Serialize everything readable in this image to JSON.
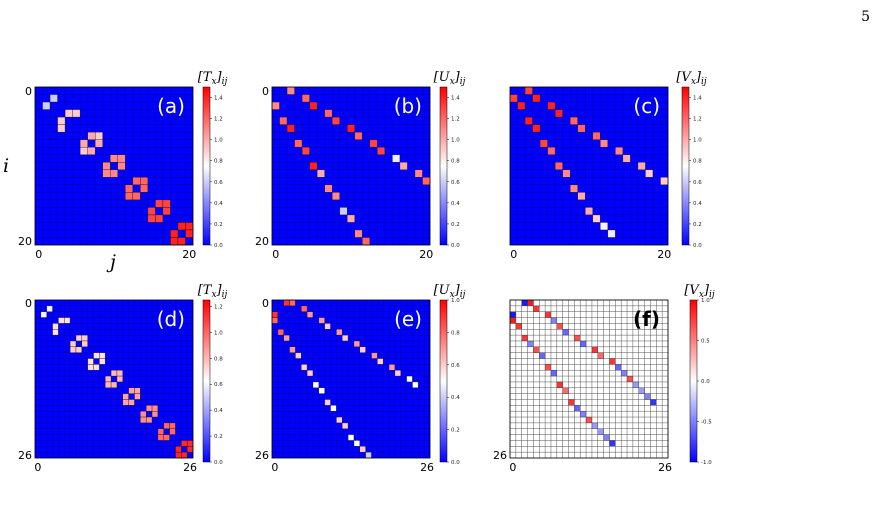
{
  "page_number": "5",
  "axis_labels": {
    "row": "i",
    "col": "j"
  },
  "colors": {
    "blue": "#0000ff",
    "white": "#ffffff",
    "red": "#ff0000",
    "grid": "#000000"
  },
  "chart_data": [
    {
      "type": "heatmap",
      "panel": "(a)",
      "cbar_title": "[T_x]_ij",
      "n": 21,
      "x_tick_labels": [
        "0",
        "20"
      ],
      "y_tick_labels": [
        "0",
        "20"
      ],
      "cbar_range": [
        0,
        1.5
      ],
      "cbar_ticks": [
        "1.4",
        "1.2",
        "1.0",
        "0.8",
        "0.6",
        "0.4",
        "0.2",
        "0.0"
      ],
      "nonzero": [
        [
          1,
          2,
          0.6
        ],
        [
          2,
          1,
          0.6
        ],
        [
          3,
          4,
          0.9
        ],
        [
          3,
          5,
          0.9
        ],
        [
          4,
          3,
          0.9
        ],
        [
          5,
          3,
          0.9
        ],
        [
          6,
          7,
          1.0
        ],
        [
          6,
          8,
          0.9
        ],
        [
          7,
          6,
          1.0
        ],
        [
          7,
          8,
          1.0
        ],
        [
          8,
          6,
          0.9
        ],
        [
          8,
          7,
          1.0
        ],
        [
          9,
          10,
          1.1
        ],
        [
          9,
          11,
          1.1
        ],
        [
          10,
          9,
          1.1
        ],
        [
          10,
          11,
          1.1
        ],
        [
          11,
          9,
          1.1
        ],
        [
          11,
          10,
          1.1
        ],
        [
          12,
          13,
          1.2
        ],
        [
          12,
          14,
          1.2
        ],
        [
          13,
          12,
          1.2
        ],
        [
          13,
          14,
          1.2
        ],
        [
          14,
          12,
          1.2
        ],
        [
          14,
          13,
          1.2
        ],
        [
          15,
          16,
          1.3
        ],
        [
          15,
          17,
          1.3
        ],
        [
          16,
          15,
          1.3
        ],
        [
          16,
          17,
          1.3
        ],
        [
          17,
          15,
          1.3
        ],
        [
          17,
          16,
          1.3
        ],
        [
          18,
          19,
          1.4
        ],
        [
          18,
          20,
          1.4
        ],
        [
          19,
          18,
          1.4
        ],
        [
          19,
          20,
          1.4
        ],
        [
          20,
          18,
          1.4
        ],
        [
          20,
          19,
          1.4
        ]
      ]
    },
    {
      "type": "heatmap",
      "panel": "(b)",
      "cbar_title": "[U_x]_ij",
      "n": 21,
      "x_tick_labels": [
        "0",
        "20"
      ],
      "y_tick_labels": [
        "0",
        "20"
      ],
      "cbar_range": [
        0,
        1.5
      ],
      "cbar_ticks": [
        "1.4",
        "1.2",
        "1.0",
        "0.8",
        "0.6",
        "0.4",
        "0.2",
        "0.0"
      ],
      "nonzero": [
        [
          0,
          2,
          1.1
        ],
        [
          1,
          4,
          1.2
        ],
        [
          2,
          5,
          1.4
        ],
        [
          3,
          7,
          1.2
        ],
        [
          4,
          8,
          1.3
        ],
        [
          5,
          10,
          1.4
        ],
        [
          6,
          11,
          1.2
        ],
        [
          7,
          13,
          1.3
        ],
        [
          8,
          14,
          1.3
        ],
        [
          9,
          16,
          0.7
        ],
        [
          10,
          17,
          1.0
        ],
        [
          11,
          19,
          1.1
        ],
        [
          12,
          20,
          1.2
        ],
        [
          2,
          0,
          1.1
        ],
        [
          4,
          1,
          1.2
        ],
        [
          5,
          2,
          1.4
        ],
        [
          7,
          3,
          1.2
        ],
        [
          8,
          4,
          1.3
        ],
        [
          10,
          5,
          1.4
        ],
        [
          11,
          6,
          1.0
        ],
        [
          13,
          7,
          1.1
        ],
        [
          14,
          8,
          1.1
        ],
        [
          16,
          9,
          0.6
        ],
        [
          17,
          10,
          1.0
        ],
        [
          19,
          11,
          1.1
        ],
        [
          20,
          12,
          1.2
        ]
      ]
    },
    {
      "type": "heatmap",
      "panel": "(c)",
      "cbar_title": "[V_x]_ij",
      "n": 21,
      "x_tick_labels": [
        "0",
        "20"
      ],
      "y_tick_labels": [],
      "cbar_range": [
        0,
        1.5
      ],
      "cbar_ticks": [
        "1.4",
        "1.2",
        "1.0",
        "0.8",
        "0.6",
        "0.4",
        "0.2",
        "0.0"
      ],
      "nonzero": [
        [
          0,
          2,
          1.3
        ],
        [
          1,
          3,
          1.4
        ],
        [
          2,
          5,
          1.4
        ],
        [
          3,
          6,
          1.4
        ],
        [
          4,
          8,
          1.2
        ],
        [
          5,
          9,
          1.2
        ],
        [
          6,
          11,
          1.2
        ],
        [
          7,
          12,
          1.1
        ],
        [
          8,
          14,
          1.1
        ],
        [
          9,
          15,
          1.0
        ],
        [
          10,
          17,
          1.0
        ],
        [
          11,
          18,
          0.9
        ],
        [
          12,
          20,
          0.9
        ],
        [
          1,
          0,
          1.3
        ],
        [
          2,
          1,
          1.4
        ],
        [
          4,
          2,
          1.4
        ],
        [
          5,
          3,
          1.4
        ],
        [
          7,
          4,
          1.3
        ],
        [
          8,
          5,
          1.2
        ],
        [
          10,
          6,
          1.2
        ],
        [
          11,
          7,
          1.1
        ],
        [
          13,
          8,
          1.1
        ],
        [
          14,
          9,
          1.0
        ],
        [
          16,
          10,
          1.0
        ],
        [
          17,
          11,
          0.9
        ],
        [
          18,
          12,
          0.8
        ],
        [
          19,
          13,
          0.7
        ]
      ]
    },
    {
      "type": "heatmap",
      "panel": "(d)",
      "cbar_title": "[T_x]_ij",
      "n": 27,
      "x_tick_labels": [
        "0",
        "26"
      ],
      "y_tick_labels": [
        "0",
        "26"
      ],
      "cbar_range": [
        0,
        1.25
      ],
      "cbar_ticks": [
        "1.2",
        "1.0",
        "0.8",
        "0.6",
        "0.4",
        "0.2",
        "0.0"
      ],
      "nonzero": [
        [
          1,
          2,
          0.6
        ],
        [
          2,
          1,
          0.6
        ],
        [
          3,
          4,
          0.7
        ],
        [
          3,
          5,
          0.7
        ],
        [
          4,
          3,
          0.7
        ],
        [
          5,
          3,
          0.7
        ],
        [
          6,
          7,
          0.75
        ],
        [
          6,
          8,
          0.75
        ],
        [
          7,
          6,
          0.75
        ],
        [
          7,
          8,
          0.75
        ],
        [
          8,
          6,
          0.75
        ],
        [
          8,
          7,
          0.75
        ],
        [
          9,
          10,
          0.7
        ],
        [
          9,
          11,
          0.7
        ],
        [
          10,
          9,
          0.7
        ],
        [
          10,
          11,
          0.7
        ],
        [
          11,
          9,
          0.7
        ],
        [
          11,
          10,
          0.7
        ],
        [
          12,
          13,
          0.8
        ],
        [
          12,
          14,
          0.8
        ],
        [
          13,
          12,
          0.8
        ],
        [
          13,
          14,
          0.8
        ],
        [
          14,
          12,
          0.8
        ],
        [
          14,
          13,
          0.8
        ],
        [
          15,
          16,
          0.85
        ],
        [
          15,
          17,
          0.85
        ],
        [
          16,
          15,
          0.85
        ],
        [
          16,
          17,
          0.85
        ],
        [
          17,
          15,
          0.85
        ],
        [
          17,
          16,
          0.85
        ],
        [
          18,
          19,
          0.9
        ],
        [
          18,
          20,
          0.9
        ],
        [
          19,
          18,
          0.9
        ],
        [
          19,
          20,
          0.9
        ],
        [
          20,
          18,
          0.9
        ],
        [
          20,
          19,
          0.9
        ],
        [
          21,
          22,
          1.0
        ],
        [
          21,
          23,
          1.0
        ],
        [
          22,
          21,
          1.0
        ],
        [
          22,
          23,
          1.0
        ],
        [
          23,
          21,
          1.0
        ],
        [
          23,
          22,
          1.0
        ],
        [
          24,
          25,
          1.15
        ],
        [
          24,
          26,
          1.15
        ],
        [
          25,
          24,
          1.15
        ],
        [
          25,
          26,
          1.15
        ],
        [
          26,
          24,
          1.15
        ],
        [
          26,
          25,
          1.15
        ]
      ]
    },
    {
      "type": "heatmap",
      "panel": "(e)",
      "cbar_title": "[U_x]_ij",
      "n": 27,
      "x_tick_labels": [
        "0",
        "26"
      ],
      "y_tick_labels": [
        "0",
        "26"
      ],
      "cbar_range": [
        0,
        1.0
      ],
      "cbar_ticks": [
        "1.0",
        "0.8",
        "0.6",
        "0.4",
        "0.2",
        "0.0"
      ],
      "nonzero": [
        [
          0,
          2,
          0.9
        ],
        [
          0,
          3,
          0.8
        ],
        [
          1,
          5,
          0.8
        ],
        [
          2,
          6,
          0.7
        ],
        [
          3,
          8,
          0.7
        ],
        [
          4,
          9,
          0.6
        ],
        [
          5,
          11,
          0.7
        ],
        [
          6,
          12,
          0.6
        ],
        [
          7,
          14,
          0.7
        ],
        [
          8,
          15,
          0.6
        ],
        [
          9,
          17,
          0.7
        ],
        [
          10,
          18,
          0.6
        ],
        [
          11,
          20,
          0.7
        ],
        [
          12,
          21,
          0.6
        ],
        [
          13,
          23,
          0.5
        ],
        [
          14,
          24,
          0.5
        ],
        [
          2,
          0,
          0.9
        ],
        [
          3,
          0,
          0.8
        ],
        [
          5,
          1,
          0.8
        ],
        [
          6,
          2,
          0.7
        ],
        [
          8,
          3,
          0.7
        ],
        [
          9,
          4,
          0.6
        ],
        [
          11,
          5,
          0.6
        ],
        [
          12,
          6,
          0.6
        ],
        [
          14,
          7,
          0.5
        ],
        [
          15,
          8,
          0.5
        ],
        [
          17,
          9,
          0.6
        ],
        [
          18,
          10,
          0.5
        ],
        [
          20,
          11,
          0.6
        ],
        [
          21,
          12,
          0.6
        ],
        [
          23,
          13,
          0.5
        ],
        [
          24,
          14,
          0.5
        ],
        [
          25,
          15,
          0.6
        ],
        [
          26,
          16,
          0.4
        ]
      ]
    },
    {
      "type": "heatmap",
      "panel": "(f)",
      "cbar_title": "[V_x]_ij",
      "n": 27,
      "x_tick_labels": [
        "0",
        "26"
      ],
      "y_tick_labels": [
        "26"
      ],
      "cbar_range": [
        -1.0,
        1.0
      ],
      "grid": true,
      "cbar_ticks": [
        "1.0",
        "0.5",
        "0.0",
        "-0.5",
        "-1.0"
      ],
      "nonzero": [
        [
          0,
          2,
          -0.9
        ],
        [
          0,
          3,
          0.9
        ],
        [
          1,
          4,
          0.8
        ],
        [
          2,
          6,
          0.8
        ],
        [
          3,
          7,
          -0.5
        ],
        [
          4,
          8,
          0.7
        ],
        [
          5,
          9,
          -0.6
        ],
        [
          6,
          11,
          0.7
        ],
        [
          7,
          12,
          -0.6
        ],
        [
          8,
          14,
          0.8
        ],
        [
          9,
          15,
          0.6
        ],
        [
          10,
          17,
          0.8
        ],
        [
          11,
          18,
          -0.6
        ],
        [
          12,
          19,
          -0.5
        ],
        [
          13,
          20,
          0.7
        ],
        [
          14,
          21,
          -0.4
        ],
        [
          15,
          22,
          -0.4
        ],
        [
          16,
          23,
          -0.5
        ],
        [
          17,
          24,
          -0.8
        ],
        [
          2,
          0,
          -0.9
        ],
        [
          3,
          0,
          0.9
        ],
        [
          4,
          1,
          0.8
        ],
        [
          6,
          2,
          0.8
        ],
        [
          7,
          3,
          -0.5
        ],
        [
          8,
          4,
          0.7
        ],
        [
          9,
          5,
          -0.6
        ],
        [
          11,
          6,
          0.7
        ],
        [
          12,
          7,
          -0.6
        ],
        [
          14,
          8,
          0.8
        ],
        [
          15,
          9,
          0.6
        ],
        [
          17,
          10,
          0.8
        ],
        [
          18,
          11,
          -0.6
        ],
        [
          19,
          12,
          -0.5
        ],
        [
          20,
          13,
          0.7
        ],
        [
          21,
          14,
          -0.4
        ],
        [
          22,
          15,
          -0.4
        ],
        [
          23,
          16,
          -0.5
        ],
        [
          24,
          17,
          -0.8
        ]
      ]
    }
  ]
}
